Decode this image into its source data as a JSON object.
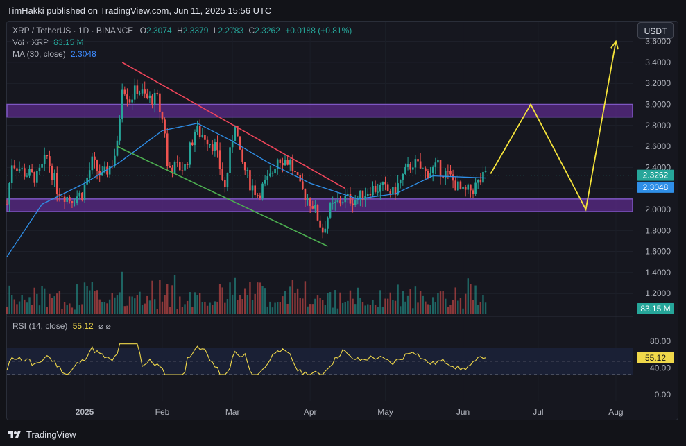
{
  "header": {
    "publisher": "TimHakki published on TradingView.com, Jun 11, 2025 15:56 UTC"
  },
  "legend": {
    "symbol": "XRP / TetherUS · 1D · BINANCE",
    "open_label": "O",
    "open": "2.3074",
    "high_label": "H",
    "high": "2.3379",
    "low_label": "L",
    "low": "2.2783",
    "close_label": "C",
    "close": "2.3262",
    "change": "+0.0188 (+0.81%)",
    "vol_label": "Vol · XRP",
    "vol": "83.15 M",
    "ma_label": "MA (30, close)",
    "ma": "2.3048",
    "rsi_label": "RSI (14, close)",
    "rsi": "55.12",
    "rsi_icons": "⌀ ⌀"
  },
  "currency_button": "USDT",
  "footer": {
    "brand": "TradingView",
    "logo_icon": "tradingview-logo-icon"
  },
  "colors": {
    "up": "#26a69a",
    "down": "#ef5350",
    "ma": "#2f8fe8",
    "zone": "#5b2b8a",
    "rsi": "#f0d84a",
    "projection": "#f5e33a",
    "resistance": "#f0455a",
    "support": "#4caf50"
  },
  "chart_data": {
    "type": "line",
    "title": "XRP / TetherUS · 1D · BINANCE",
    "x_ticks": [
      "2025",
      "Feb",
      "Mar",
      "Apr",
      "May",
      "Jun",
      "Jul",
      "Aug"
    ],
    "y_ticks": [
      "1.2000",
      "1.4000",
      "1.6000",
      "1.8000",
      "2.0000",
      "2.2000",
      "2.4000",
      "2.6000",
      "2.8000",
      "3.0000",
      "3.2000",
      "3.4000",
      "3.6000"
    ],
    "ylim": [
      1.05,
      3.65
    ],
    "price_labels": {
      "last": "2.3262",
      "ma": "2.3048",
      "volume": "83.15 M"
    },
    "series": [
      {
        "name": "XRP",
        "values_close_approx": [
          [
            "2024-12-01",
            2.05
          ],
          [
            "2024-12-03",
            2.45
          ],
          [
            "2024-12-08",
            2.35
          ],
          [
            "2024-12-13",
            2.3
          ],
          [
            "2024-12-17",
            2.5
          ],
          [
            "2024-12-21",
            2.2
          ],
          [
            "2024-12-26",
            2.1
          ],
          [
            "2024-12-31",
            2.15
          ],
          [
            "2025-01-04",
            2.45
          ],
          [
            "2025-01-08",
            2.3
          ],
          [
            "2025-01-12",
            2.45
          ],
          [
            "2025-01-14",
            2.6
          ],
          [
            "2025-01-16",
            3.2
          ],
          [
            "2025-01-19",
            3.05
          ],
          [
            "2025-01-22",
            3.15
          ],
          [
            "2025-01-26",
            3.05
          ],
          [
            "2025-01-30",
            3.05
          ],
          [
            "2025-02-02",
            2.75
          ],
          [
            "2025-02-03",
            2.4
          ],
          [
            "2025-02-07",
            2.4
          ],
          [
            "2025-02-10",
            2.4
          ],
          [
            "2025-02-14",
            2.75
          ],
          [
            "2025-02-18",
            2.7
          ],
          [
            "2025-02-22",
            2.6
          ],
          [
            "2025-02-26",
            2.2
          ],
          [
            "2025-03-02",
            2.85
          ],
          [
            "2025-03-04",
            2.5
          ],
          [
            "2025-03-08",
            2.25
          ],
          [
            "2025-03-11",
            2.15
          ],
          [
            "2025-03-16",
            2.3
          ],
          [
            "2025-03-19",
            2.5
          ],
          [
            "2025-03-24",
            2.45
          ],
          [
            "2025-03-28",
            2.2
          ],
          [
            "2025-04-02",
            2.05
          ],
          [
            "2025-04-06",
            1.8
          ],
          [
            "2025-04-09",
            2.0
          ],
          [
            "2025-04-14",
            2.1
          ],
          [
            "2025-04-20",
            2.1
          ],
          [
            "2025-04-25",
            2.2
          ],
          [
            "2025-04-30",
            2.2
          ],
          [
            "2025-05-04",
            2.15
          ],
          [
            "2025-05-09",
            2.35
          ],
          [
            "2025-05-12",
            2.45
          ],
          [
            "2025-05-17",
            2.35
          ],
          [
            "2025-05-22",
            2.4
          ],
          [
            "2025-05-27",
            2.3
          ],
          [
            "2025-06-01",
            2.15
          ],
          [
            "2025-06-05",
            2.2
          ],
          [
            "2025-06-10",
            2.32
          ]
        ]
      },
      {
        "name": "MA (30, close)",
        "values_approx": [
          [
            "2024-12-01",
            1.55
          ],
          [
            "2024-12-15",
            2.05
          ],
          [
            "2025-01-01",
            2.25
          ],
          [
            "2025-01-15",
            2.45
          ],
          [
            "2025-02-01",
            2.75
          ],
          [
            "2025-02-15",
            2.82
          ],
          [
            "2025-03-01",
            2.65
          ],
          [
            "2025-03-15",
            2.45
          ],
          [
            "2025-04-01",
            2.25
          ],
          [
            "2025-04-20",
            2.1
          ],
          [
            "2025-05-05",
            2.15
          ],
          [
            "2025-05-20",
            2.32
          ],
          [
            "2025-06-10",
            2.3
          ]
        ]
      },
      {
        "name": "Projection",
        "values_approx": [
          [
            "2025-06-12",
            2.34
          ],
          [
            "2025-06-28",
            3.0
          ],
          [
            "2025-07-20",
            2.0
          ],
          [
            "2025-08-01",
            3.6
          ]
        ]
      }
    ],
    "zones": [
      {
        "from": 2.88,
        "to": 3.0
      },
      {
        "from": 1.98,
        "to": 2.1
      }
    ],
    "trendlines": [
      {
        "name": "resistance",
        "from": [
          "2025-01-16",
          3.4
        ],
        "to": [
          "2025-04-15",
          2.2
        ]
      },
      {
        "name": "support",
        "from": [
          "2025-01-14",
          2.6
        ],
        "to": [
          "2025-04-08",
          1.65
        ]
      }
    ],
    "rsi": {
      "value": "55.12",
      "levels": [
        "80.00",
        "40.00",
        "0.00"
      ],
      "band": [
        30,
        70
      ]
    }
  }
}
